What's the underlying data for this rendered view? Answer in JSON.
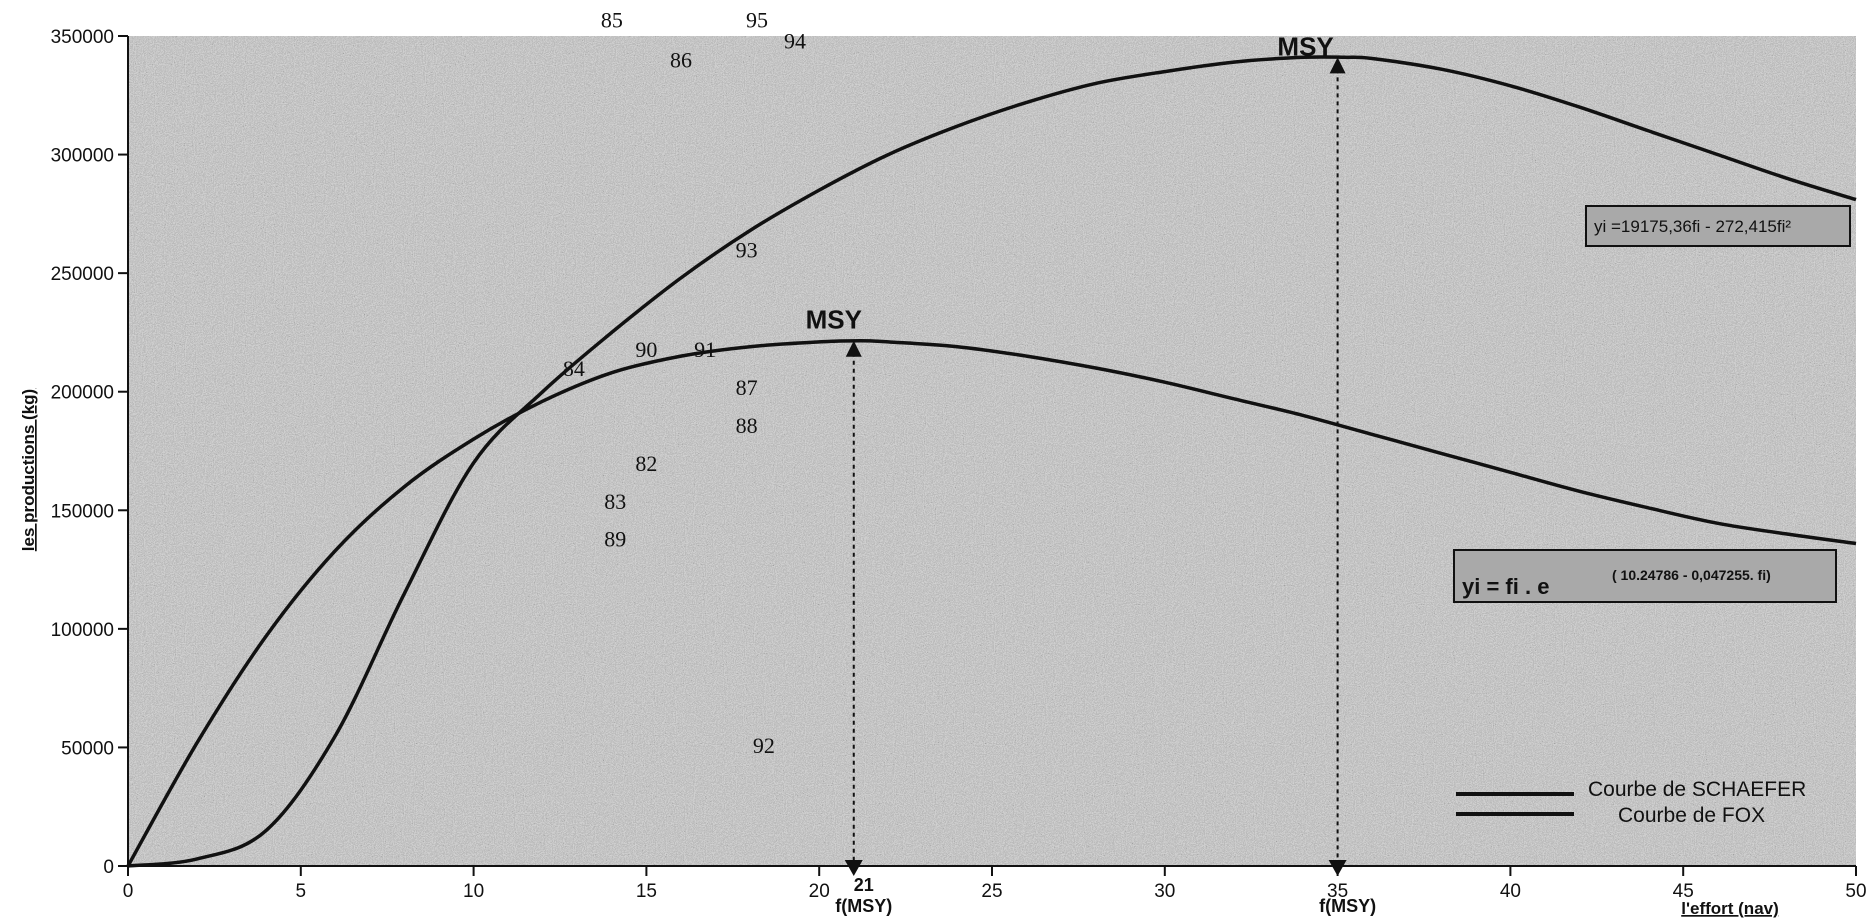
{
  "chart_data": {
    "type": "line",
    "xlabel": "l'effort (nav)",
    "ylabel": "les productions (kg)",
    "xlim": [
      0,
      50
    ],
    "ylim": [
      0,
      350000
    ],
    "x_ticks": [
      "0",
      "5",
      "10",
      "15",
      "20",
      "25",
      "30",
      "35",
      "40",
      "45",
      "50"
    ],
    "y_ticks": [
      "0",
      "50000",
      "100000",
      "150000",
      "200000",
      "250000",
      "300000",
      "350000"
    ],
    "grid": false,
    "background": "stippled gray",
    "legend_position": "bottom-right",
    "series": [
      {
        "name": "Courbe de SCHAEFER",
        "color": "#111111",
        "x": [
          0,
          2,
          4,
          6,
          8,
          10,
          12,
          14,
          16,
          18,
          20,
          22,
          24,
          26,
          28,
          30,
          32,
          34,
          35.2,
          36,
          38,
          40,
          42,
          44,
          46,
          48,
          50
        ],
        "y": [
          0,
          3000,
          15000,
          55000,
          115000,
          170000,
          200000,
          225000,
          248000,
          268000,
          285000,
          300000,
          312000,
          322000,
          330000,
          335000,
          339000,
          341000,
          341000,
          340500,
          336000,
          329000,
          320000,
          310000,
          300000,
          290000,
          281000
        ]
      },
      {
        "name": "Courbe de FOX",
        "color": "#111111",
        "x": [
          0,
          2,
          4,
          6,
          8,
          10,
          12,
          14,
          16,
          18,
          20,
          21.2,
          22,
          24,
          26,
          28,
          30,
          32,
          34,
          36,
          38,
          40,
          42,
          44,
          46,
          48,
          50
        ],
        "y": [
          0,
          52000,
          97000,
          133000,
          160000,
          180000,
          196000,
          208000,
          215000,
          219000,
          221000,
          221500,
          221000,
          219000,
          215000,
          210000,
          204000,
          197000,
          190000,
          182000,
          174000,
          166000,
          158000,
          151000,
          144500,
          140000,
          136000
        ]
      }
    ],
    "points": [
      {
        "label": "85",
        "x": 14.0,
        "y": 357000
      },
      {
        "label": "95",
        "x": 18.2,
        "y": 357000
      },
      {
        "label": "94",
        "x": 19.3,
        "y": 348000
      },
      {
        "label": "86",
        "x": 16.0,
        "y": 340000
      },
      {
        "label": "93",
        "x": 17.9,
        "y": 260000
      },
      {
        "label": "90",
        "x": 15.0,
        "y": 218000
      },
      {
        "label": "91",
        "x": 16.7,
        "y": 218000
      },
      {
        "label": "84",
        "x": 12.9,
        "y": 210000
      },
      {
        "label": "87",
        "x": 17.9,
        "y": 202000
      },
      {
        "label": "88",
        "x": 17.9,
        "y": 186000
      },
      {
        "label": "82",
        "x": 15.0,
        "y": 170000
      },
      {
        "label": "83",
        "x": 14.1,
        "y": 154000
      },
      {
        "label": "89",
        "x": 14.1,
        "y": 138000
      },
      {
        "label": "92",
        "x": 18.4,
        "y": 51000
      }
    ],
    "annotations": {
      "msy_schaefer": {
        "label": "MSY",
        "x": 35,
        "y": 341000
      },
      "msy_fox": {
        "label": "MSY",
        "x": 21,
        "y": 221500
      },
      "fmsy_fox": {
        "value": "21",
        "label": "f(MSY)"
      },
      "fmsy_schaefer": {
        "label": "f(MSY)"
      },
      "equation_schaefer": "yi =19175,36fi  - 272,415fi²",
      "equation_fox": {
        "main": "yi =  fi . e",
        "exponent": "( 10.24786 - 0,047255. fi)"
      }
    }
  }
}
